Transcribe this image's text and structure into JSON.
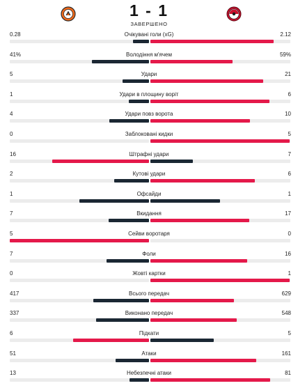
{
  "header": {
    "home_team_logo": "shakhtar-logo",
    "away_team_logo": "feyenoord-logo",
    "score": "1 - 1",
    "status": "ЗАВЕРШЕНО"
  },
  "colors": {
    "home_bar_dark": "#1b2733",
    "away_bar_dark": "#1b2733",
    "accent_red": "#e4194a",
    "track": "#ececec"
  },
  "stats": [
    {
      "label": "Очікувані голи (xG)",
      "home": "0.28",
      "away": "2.12",
      "home_value": 0.28,
      "away_value": 2.12
    },
    {
      "label": "Володіння м'ячем",
      "home": "41%",
      "away": "59%",
      "home_value": 41,
      "away_value": 59
    },
    {
      "label": "Удари",
      "home": "5",
      "away": "21",
      "home_value": 5,
      "away_value": 21
    },
    {
      "label": "Удари в площину воріт",
      "home": "1",
      "away": "6",
      "home_value": 1,
      "away_value": 6
    },
    {
      "label": "Удари повз ворота",
      "home": "4",
      "away": "10",
      "home_value": 4,
      "away_value": 10
    },
    {
      "label": "Заблоковані кидки",
      "home": "0",
      "away": "5",
      "home_value": 0,
      "away_value": 5
    },
    {
      "label": "Штрафні удари",
      "home": "16",
      "away": "7",
      "home_value": 16,
      "away_value": 7
    },
    {
      "label": "Кутові удари",
      "home": "2",
      "away": "6",
      "home_value": 2,
      "away_value": 6
    },
    {
      "label": "Офсайди",
      "home": "1",
      "away": "1",
      "home_value": 1,
      "away_value": 1
    },
    {
      "label": "Вкидання",
      "home": "7",
      "away": "17",
      "home_value": 7,
      "away_value": 17
    },
    {
      "label": "Сейви воротаря",
      "home": "5",
      "away": "0",
      "home_value": 5,
      "away_value": 0
    },
    {
      "label": "Фоли",
      "home": "7",
      "away": "16",
      "home_value": 7,
      "away_value": 16
    },
    {
      "label": "Жовті картки",
      "home": "0",
      "away": "1",
      "home_value": 0,
      "away_value": 1
    },
    {
      "label": "Всього передач",
      "home": "417",
      "away": "629",
      "home_value": 417,
      "away_value": 629
    },
    {
      "label": "Виконано передач",
      "home": "337",
      "away": "548",
      "home_value": 337,
      "away_value": 548
    },
    {
      "label": "Підкати",
      "home": "6",
      "away": "5",
      "home_value": 6,
      "away_value": 5
    },
    {
      "label": "Атаки",
      "home": "51",
      "away": "161",
      "home_value": 51,
      "away_value": 161
    },
    {
      "label": "Небезпечні атаки",
      "home": "13",
      "away": "81",
      "home_value": 13,
      "away_value": 81
    }
  ]
}
